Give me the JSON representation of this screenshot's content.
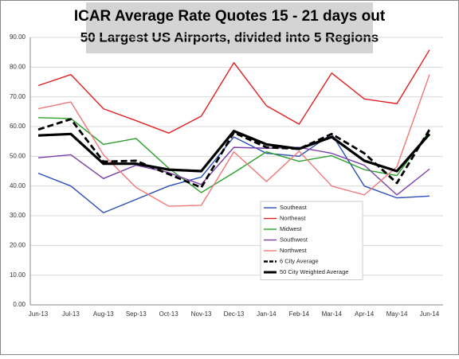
{
  "chart_data": {
    "type": "line",
    "title": "ICAR Average Rate Quotes 15 - 21 days out",
    "subtitle": "50 Largest US Airports, divided into 5 Regions",
    "categories": [
      "Jun-13",
      "Jul-13",
      "Aug-13",
      "Sep-13",
      "Oct-13",
      "Nov-13",
      "Dec-13",
      "Jan-14",
      "Feb-14",
      "Mar-14",
      "Apr-14",
      "May-14",
      "Jun-14"
    ],
    "series": [
      {
        "name": "Southeast",
        "color": "#2a4fb5",
        "values": [
          44.3,
          40,
          31,
          35.5,
          40,
          43,
          56.5,
          51,
          50,
          57.5,
          40,
          36,
          36.6
        ]
      },
      {
        "name": "Northeast",
        "color": "#e02020",
        "values": [
          73.8,
          77.5,
          66,
          62,
          57.8,
          63.5,
          81.5,
          67,
          60.8,
          78,
          69.3,
          67.7,
          85.8
        ]
      },
      {
        "name": "Midwest",
        "color": "#2ca02c",
        "values": [
          63,
          62.7,
          54,
          56,
          46,
          37.8,
          44.5,
          51.5,
          48.3,
          50.2,
          45.5,
          43.5,
          58.5
        ]
      },
      {
        "name": "Southwest",
        "color": "#7b3fa8",
        "values": [
          49.5,
          50.5,
          42.5,
          47,
          44.5,
          40.5,
          53,
          52.7,
          53,
          51,
          47,
          37,
          45.7
        ]
      },
      {
        "name": "Northwest",
        "color": "#f07878",
        "values": [
          66,
          68.3,
          50.5,
          39.5,
          33.2,
          33.5,
          51.5,
          41.5,
          51.7,
          40,
          37,
          46.5,
          77.5
        ]
      },
      {
        "name": "6 City Average",
        "color": "#000000",
        "dashed": true,
        "values": [
          59,
          62.5,
          48.2,
          48.5,
          44,
          39.5,
          58,
          53,
          52.5,
          57.5,
          51,
          41,
          59
        ]
      },
      {
        "name": "50 City Weighted Average",
        "color": "#000000",
        "bold": true,
        "values": [
          57,
          57.5,
          47.5,
          47.5,
          45.5,
          45,
          58.5,
          54,
          52.5,
          56.5,
          48.5,
          45,
          57.5
        ]
      }
    ],
    "ylim": [
      0,
      90
    ],
    "yticks": [
      {
        "value": 0,
        "label": "0.00"
      },
      {
        "value": 10,
        "label": "10.00"
      },
      {
        "value": 20,
        "label": "20.00"
      },
      {
        "value": 30,
        "label": "30.00"
      },
      {
        "value": 40,
        "label": "40.00"
      },
      {
        "value": 50,
        "label": "50.00"
      },
      {
        "value": 60,
        "label": "60.00"
      },
      {
        "value": 70,
        "label": "70.00"
      },
      {
        "value": 80,
        "label": "80.00"
      },
      {
        "value": 90,
        "label": "90.00"
      }
    ],
    "grid": true
  }
}
